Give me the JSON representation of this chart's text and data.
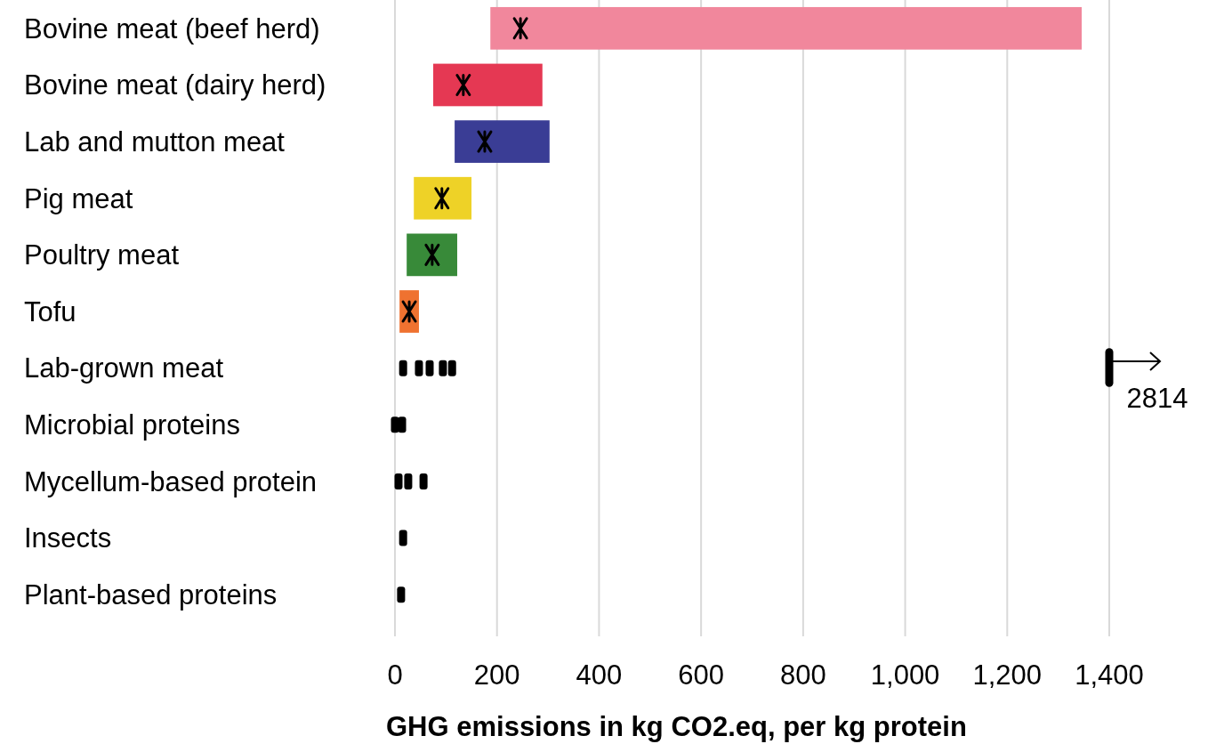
{
  "chart_data": {
    "type": "bar",
    "orientation": "horizontal",
    "xlabel": "GHG emissions in kg CO2.eq, per kg protein",
    "categories": [
      "Bovine meat (beef herd)",
      "Bovine meat (dairy herd)",
      "Lab and mutton meat",
      "Pig meat",
      "Poultry meat",
      "Tofu",
      "Lab-grown meat",
      "Microbial proteins",
      "Mycellum-based protein",
      "Insects",
      "Plant-based proteins"
    ],
    "xlim": [
      0,
      1400
    ],
    "xticks": [
      0,
      200,
      400,
      600,
      {
        "value": 800,
        "label": "800"
      },
      {
        "value": 1000,
        "label": "1,000"
      },
      {
        "value": 1200,
        "label": "1,200"
      },
      {
        "value": 1400,
        "label": "1,400"
      }
    ],
    "grid": "x",
    "series": [
      {
        "base": [
          187,
          75,
          117,
          37,
          23,
          9,
          null,
          null,
          null,
          null,
          null
        ],
        "values": [
          1159,
          214,
          186,
          113,
          99,
          38,
          null,
          null,
          null,
          null,
          null
        ],
        "colors": [
          "#f1879c",
          "#e53853",
          "#3a3d95",
          "#eed227",
          "#388a39",
          "#ef7230",
          null,
          null,
          null,
          null,
          null
        ]
      },
      {
        "type": "scatter",
        "marker": "cross",
        "color": "#000000",
        "x": [
          "Bovine meat (beef herd)",
          "Bovine meat (dairy herd)",
          "Lab and mutton meat",
          "Pig meat",
          "Poultry meat",
          "Tofu"
        ],
        "values": [
          246,
          134,
          176,
          92,
          73,
          28
        ]
      },
      {
        "type": "scatter",
        "marker": "square",
        "color": "#000000",
        "x": [
          "Lab-grown meat",
          "Lab-grown meat",
          "Lab-grown meat",
          "Lab-grown meat",
          "Lab-grown meat",
          "Microbial proteins",
          "Microbial proteins",
          "Mycellum-based protein",
          "Mycellum-based protein",
          "Mycellum-based protein",
          "Insects",
          "Plant-based proteins"
        ],
        "values": [
          16,
          47,
          68,
          94,
          112,
          0,
          14,
          7,
          26,
          56,
          16,
          12
        ]
      }
    ],
    "annotations": [
      "2814"
    ]
  }
}
